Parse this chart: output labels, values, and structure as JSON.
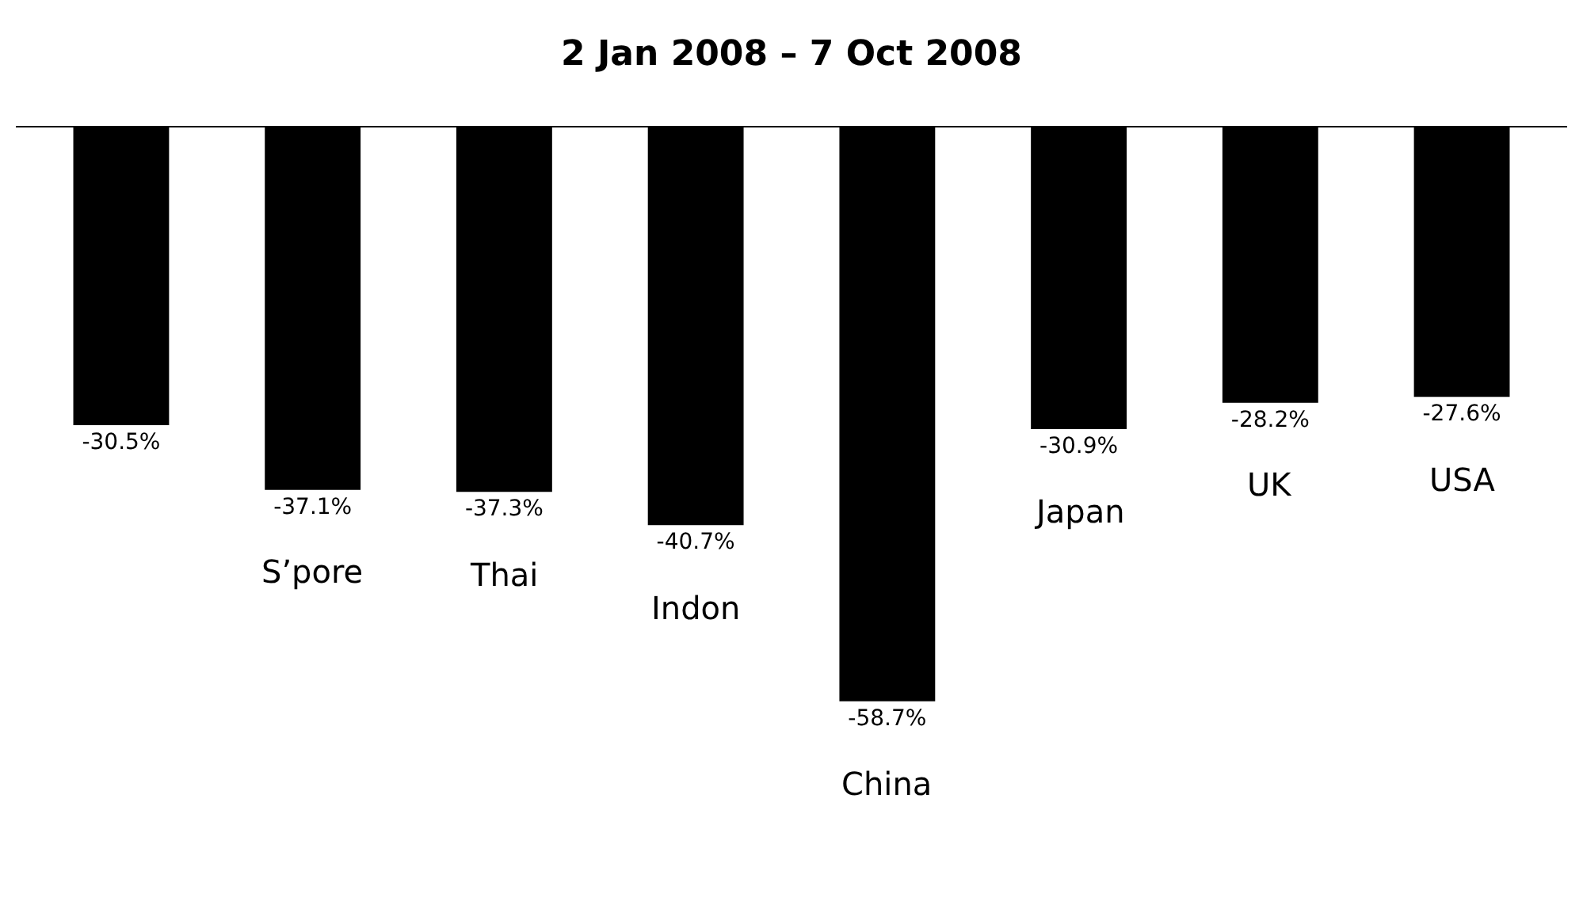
{
  "chart_data": {
    "type": "bar",
    "title": "2 Jan 2008 – 7 Oct 2008",
    "categories": [
      null,
      "S’pore",
      "Thai",
      "Indon",
      "China",
      "Japan",
      "UK",
      "USA"
    ],
    "values": [
      -30.5,
      -37.1,
      -37.3,
      -40.7,
      -58.7,
      -30.9,
      -28.2,
      -27.6
    ],
    "value_labels": [
      "-30.5%",
      "-37.1%",
      "-37.3%",
      "-40.7%",
      "-58.7%",
      "-30.9%",
      "-28.2%",
      "-27.6%"
    ],
    "color": "#000000"
  }
}
